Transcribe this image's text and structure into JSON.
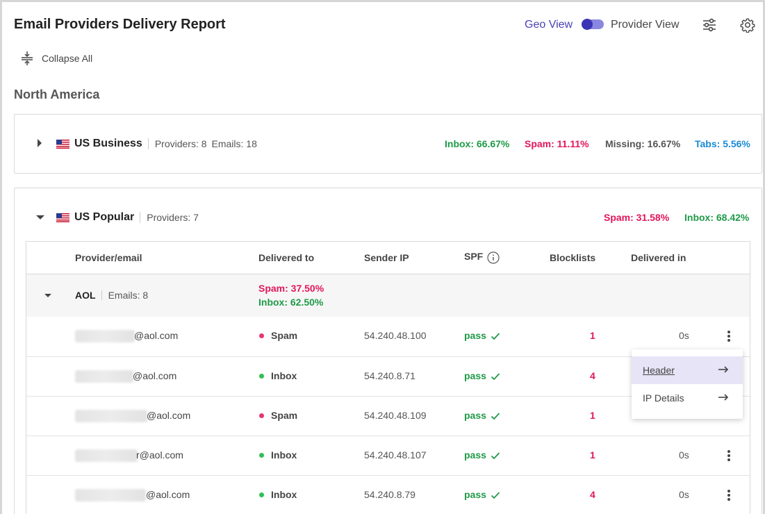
{
  "header": {
    "title": "Email Providers Delivery Report",
    "geo_view_label": "Geo View",
    "provider_view_label": "Provider View"
  },
  "toolbar": {
    "collapse_all_label": "Collapse All"
  },
  "region": {
    "name": "North America"
  },
  "groups": [
    {
      "name": "US Business",
      "providers": "Providers: 8",
      "emails": "Emails: 18",
      "stats": {
        "inbox": "Inbox: 66.67%",
        "spam": "Spam: 11.11%",
        "missing": "Missing: 16.67%",
        "tabs": "Tabs: 5.56%"
      }
    },
    {
      "name": "US Popular",
      "providers": "Providers: 7",
      "stats": {
        "spam": "Spam: 31.58%",
        "inbox": "Inbox: 68.42%"
      }
    }
  ],
  "table": {
    "columns": [
      "Provider/email",
      "Delivered to",
      "Sender IP",
      "SPF",
      "Blocklists",
      "Delivered in"
    ],
    "provider": {
      "name": "AOL",
      "emails": "Emails: 8",
      "spam": "Spam: 37.50%",
      "inbox": "Inbox: 62.50%"
    },
    "rows": [
      {
        "email": "@aol.com",
        "delivered_to": "Spam",
        "ip": "54.240.48.100",
        "spf": "pass",
        "blocklists": "1",
        "delivered_in": "0s"
      },
      {
        "email": "@aol.com",
        "delivered_to": "Inbox",
        "ip": "54.240.8.71",
        "spf": "pass",
        "blocklists": "4",
        "delivered_in": ""
      },
      {
        "email": "@aol.com",
        "delivered_to": "Spam",
        "ip": "54.240.48.109",
        "spf": "pass",
        "blocklists": "1",
        "delivered_in": ""
      },
      {
        "email": "r@aol.com",
        "delivered_to": "Inbox",
        "ip": "54.240.48.107",
        "spf": "pass",
        "blocklists": "1",
        "delivered_in": "0s"
      },
      {
        "email": "@aol.com",
        "delivered_to": "Inbox",
        "ip": "54.240.8.79",
        "spf": "pass",
        "blocklists": "4",
        "delivered_in": "0s"
      }
    ]
  },
  "context_menu": {
    "items": [
      "Header",
      "IP Details"
    ]
  },
  "colors": {
    "accent": "#3b35b5",
    "inbox": "#1f9a47",
    "spam": "#e2165a",
    "tabs": "#1a8ad4",
    "dot_spam": "#e8336d",
    "dot_inbox": "#2fbf55"
  }
}
